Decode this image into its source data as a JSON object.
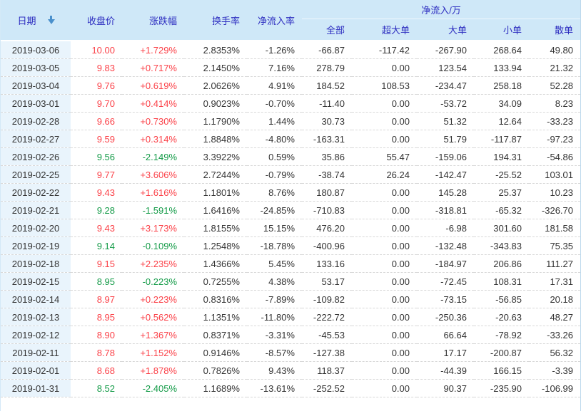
{
  "header": {
    "date_label": "日期",
    "sort_icon": "sort-descending-arrow",
    "columns": [
      "收盘价",
      "涨跌幅",
      "换手率",
      "净流入率"
    ],
    "group_label": "净流入/万",
    "group_columns": [
      "全部",
      "超大单",
      "大单",
      "小单",
      "散单"
    ]
  },
  "colors": {
    "up": "#fb4148",
    "down": "#149b48",
    "header_bg": "#cfe8f8",
    "header_text": "#2d2dc0",
    "date_col_bg": "#e9f4fc",
    "sort_arrow": "#4a90cc"
  },
  "rows": [
    {
      "date": "2019-03-06",
      "close": "10.00",
      "change": "+1.729%",
      "turnover": "2.8353%",
      "inflow_rate": "-1.26%",
      "all": "-66.87",
      "super_large": "-117.42",
      "large": "-267.90",
      "small": "268.64",
      "retail": "49.80",
      "trend": "up"
    },
    {
      "date": "2019-03-05",
      "close": "9.83",
      "change": "+0.717%",
      "turnover": "2.1450%",
      "inflow_rate": "7.16%",
      "all": "278.79",
      "super_large": "0.00",
      "large": "123.54",
      "small": "133.94",
      "retail": "21.32",
      "trend": "up"
    },
    {
      "date": "2019-03-04",
      "close": "9.76",
      "change": "+0.619%",
      "turnover": "2.0626%",
      "inflow_rate": "4.91%",
      "all": "184.52",
      "super_large": "108.53",
      "large": "-234.47",
      "small": "258.18",
      "retail": "52.28",
      "trend": "up"
    },
    {
      "date": "2019-03-01",
      "close": "9.70",
      "change": "+0.414%",
      "turnover": "0.9023%",
      "inflow_rate": "-0.70%",
      "all": "-11.40",
      "super_large": "0.00",
      "large": "-53.72",
      "small": "34.09",
      "retail": "8.23",
      "trend": "up"
    },
    {
      "date": "2019-02-28",
      "close": "9.66",
      "change": "+0.730%",
      "turnover": "1.1790%",
      "inflow_rate": "1.44%",
      "all": "30.73",
      "super_large": "0.00",
      "large": "51.32",
      "small": "12.64",
      "retail": "-33.23",
      "trend": "up"
    },
    {
      "date": "2019-02-27",
      "close": "9.59",
      "change": "+0.314%",
      "turnover": "1.8848%",
      "inflow_rate": "-4.80%",
      "all": "-163.31",
      "super_large": "0.00",
      "large": "51.79",
      "small": "-117.87",
      "retail": "-97.23",
      "trend": "up"
    },
    {
      "date": "2019-02-26",
      "close": "9.56",
      "change": "-2.149%",
      "turnover": "3.3922%",
      "inflow_rate": "0.59%",
      "all": "35.86",
      "super_large": "55.47",
      "large": "-159.06",
      "small": "194.31",
      "retail": "-54.86",
      "trend": "down"
    },
    {
      "date": "2019-02-25",
      "close": "9.77",
      "change": "+3.606%",
      "turnover": "2.7244%",
      "inflow_rate": "-0.79%",
      "all": "-38.74",
      "super_large": "26.24",
      "large": "-142.47",
      "small": "-25.52",
      "retail": "103.01",
      "trend": "up"
    },
    {
      "date": "2019-02-22",
      "close": "9.43",
      "change": "+1.616%",
      "turnover": "1.1801%",
      "inflow_rate": "8.76%",
      "all": "180.87",
      "super_large": "0.00",
      "large": "145.28",
      "small": "25.37",
      "retail": "10.23",
      "trend": "up"
    },
    {
      "date": "2019-02-21",
      "close": "9.28",
      "change": "-1.591%",
      "turnover": "1.6416%",
      "inflow_rate": "-24.85%",
      "all": "-710.83",
      "super_large": "0.00",
      "large": "-318.81",
      "small": "-65.32",
      "retail": "-326.70",
      "trend": "down"
    },
    {
      "date": "2019-02-20",
      "close": "9.43",
      "change": "+3.173%",
      "turnover": "1.8155%",
      "inflow_rate": "15.15%",
      "all": "476.20",
      "super_large": "0.00",
      "large": "-6.98",
      "small": "301.60",
      "retail": "181.58",
      "trend": "up"
    },
    {
      "date": "2019-02-19",
      "close": "9.14",
      "change": "-0.109%",
      "turnover": "1.2548%",
      "inflow_rate": "-18.78%",
      "all": "-400.96",
      "super_large": "0.00",
      "large": "-132.48",
      "small": "-343.83",
      "retail": "75.35",
      "trend": "down"
    },
    {
      "date": "2019-02-18",
      "close": "9.15",
      "change": "+2.235%",
      "turnover": "1.4366%",
      "inflow_rate": "5.45%",
      "all": "133.16",
      "super_large": "0.00",
      "large": "-184.97",
      "small": "206.86",
      "retail": "111.27",
      "trend": "up"
    },
    {
      "date": "2019-02-15",
      "close": "8.95",
      "change": "-0.223%",
      "turnover": "0.7255%",
      "inflow_rate": "4.38%",
      "all": "53.17",
      "super_large": "0.00",
      "large": "-72.45",
      "small": "108.31",
      "retail": "17.31",
      "trend": "down"
    },
    {
      "date": "2019-02-14",
      "close": "8.97",
      "change": "+0.223%",
      "turnover": "0.8316%",
      "inflow_rate": "-7.89%",
      "all": "-109.82",
      "super_large": "0.00",
      "large": "-73.15",
      "small": "-56.85",
      "retail": "20.18",
      "trend": "up"
    },
    {
      "date": "2019-02-13",
      "close": "8.95",
      "change": "+0.562%",
      "turnover": "1.1351%",
      "inflow_rate": "-11.80%",
      "all": "-222.72",
      "super_large": "0.00",
      "large": "-250.36",
      "small": "-20.63",
      "retail": "48.27",
      "trend": "up"
    },
    {
      "date": "2019-02-12",
      "close": "8.90",
      "change": "+1.367%",
      "turnover": "0.8371%",
      "inflow_rate": "-3.31%",
      "all": "-45.53",
      "super_large": "0.00",
      "large": "66.64",
      "small": "-78.92",
      "retail": "-33.26",
      "trend": "up"
    },
    {
      "date": "2019-02-11",
      "close": "8.78",
      "change": "+1.152%",
      "turnover": "0.9146%",
      "inflow_rate": "-8.57%",
      "all": "-127.38",
      "super_large": "0.00",
      "large": "17.17",
      "small": "-200.87",
      "retail": "56.32",
      "trend": "up"
    },
    {
      "date": "2019-02-01",
      "close": "8.68",
      "change": "+1.878%",
      "turnover": "0.7826%",
      "inflow_rate": "9.43%",
      "all": "118.37",
      "super_large": "0.00",
      "large": "-44.39",
      "small": "166.15",
      "retail": "-3.39",
      "trend": "up"
    },
    {
      "date": "2019-01-31",
      "close": "8.52",
      "change": "-2.405%",
      "turnover": "1.1689%",
      "inflow_rate": "-13.61%",
      "all": "-252.52",
      "super_large": "0.00",
      "large": "90.37",
      "small": "-235.90",
      "retail": "-106.99",
      "trend": "down"
    }
  ]
}
